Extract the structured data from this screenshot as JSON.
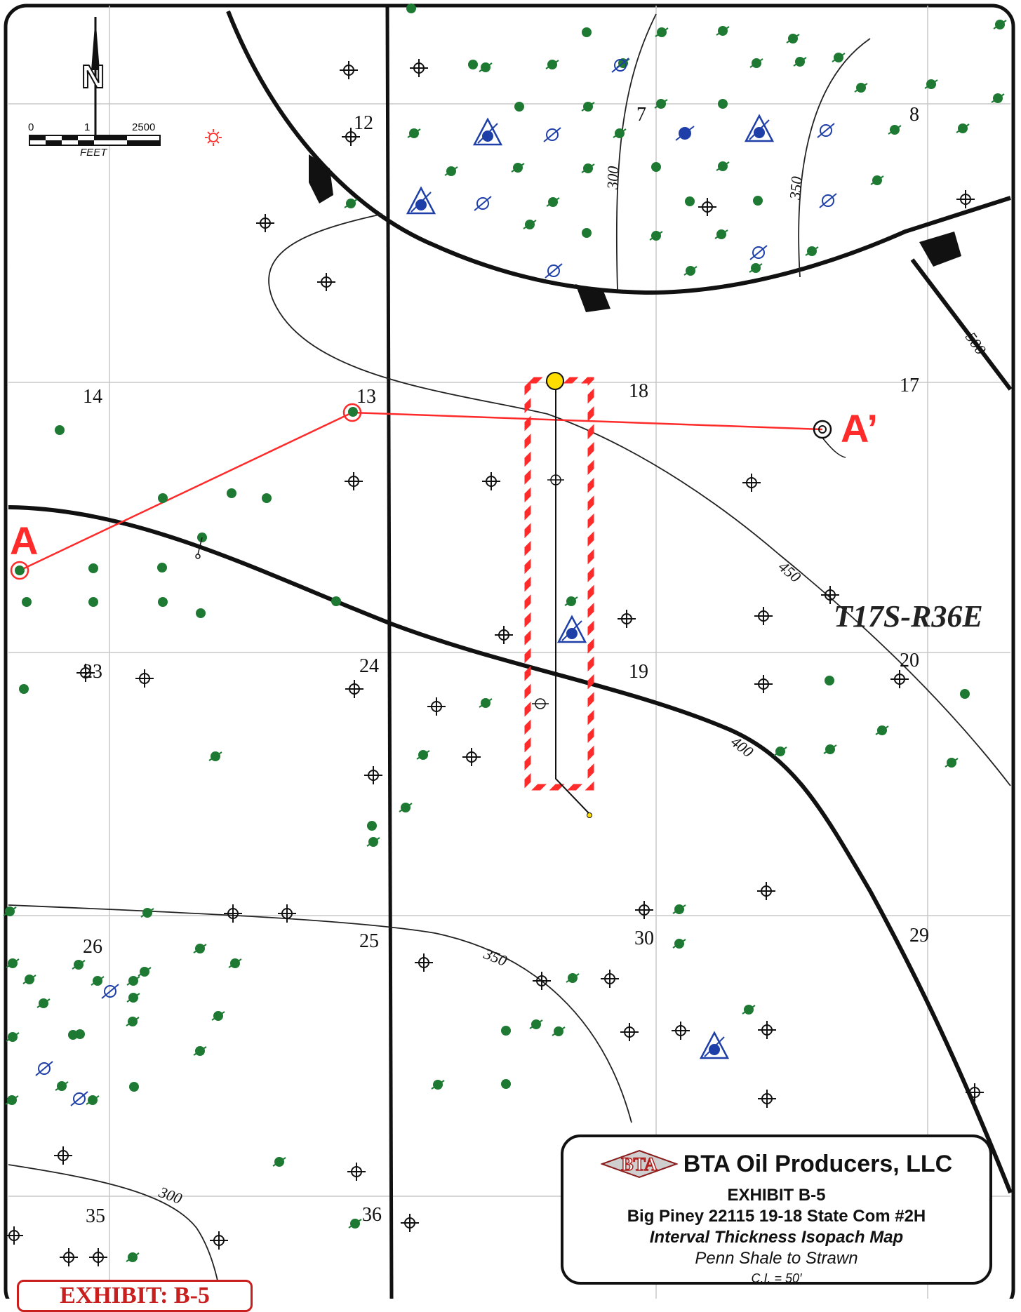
{
  "sections": [
    {
      "label": "12"
    },
    {
      "label": "7"
    },
    {
      "label": "8"
    },
    {
      "label": "14"
    },
    {
      "label": "13"
    },
    {
      "label": "18"
    },
    {
      "label": "17"
    },
    {
      "label": "23"
    },
    {
      "label": "24"
    },
    {
      "label": "19"
    },
    {
      "label": "20"
    },
    {
      "label": "26"
    },
    {
      "label": "25"
    },
    {
      "label": "30"
    },
    {
      "label": "29"
    },
    {
      "label": "35"
    },
    {
      "label": "36"
    }
  ],
  "contour_labels": [
    "300",
    "350",
    "500",
    "450",
    "400",
    "350",
    "300"
  ],
  "township": "T17S-R36E",
  "cross_section": {
    "start": "A",
    "end": "A’"
  },
  "scale_bar": {
    "min": "0",
    "max": "2500",
    "unit": "FEET",
    "mid": "1"
  },
  "north_label": "N",
  "title_block": {
    "logo_text": "BTA",
    "company": "BTA Oil Producers, LLC",
    "exhibit": "EXHIBIT B-5",
    "well_name": "Big Piney 22115 19-18 State Com #2H",
    "map_type": "Interval Thickness Isopach Map",
    "interval": "Penn Shale to Strawn",
    "contour_interval": "C.I. = 50′"
  },
  "exhibit_tag": "EXHIBIT: B-5",
  "colors": {
    "producing_oil": "#1e7a32",
    "injection_blue": "#1f3fa8",
    "cross_section_red": "#ff2a2a",
    "proposed_well_yellow": "#ffdd00",
    "frame": "#111111"
  }
}
